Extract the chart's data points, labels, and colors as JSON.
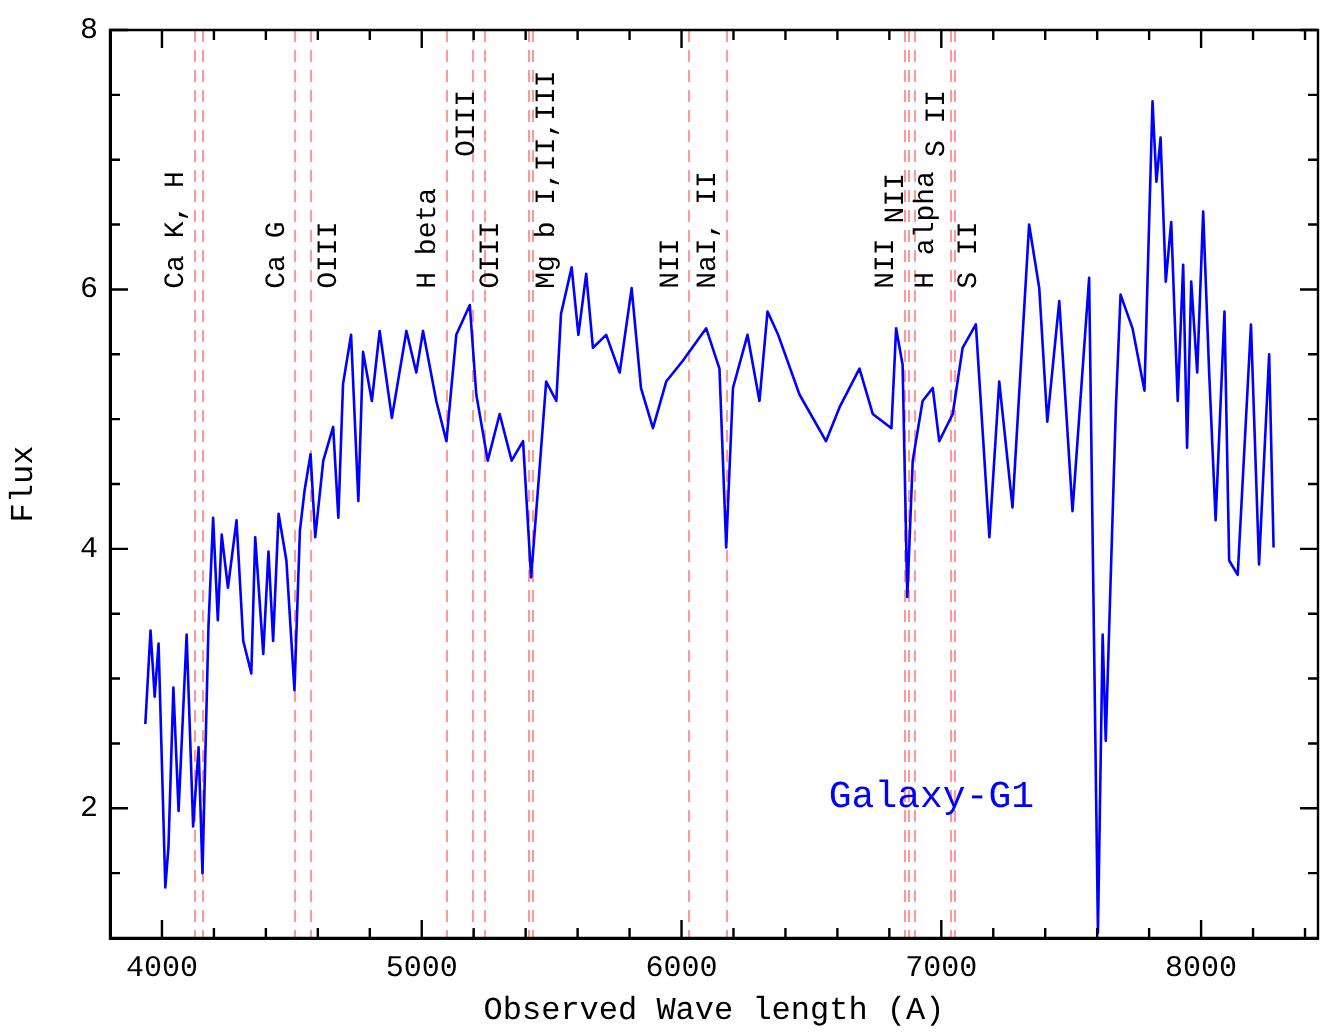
{
  "chart_data": {
    "type": "line",
    "xlabel": "Observed Wave length (A)",
    "ylabel": "Flux",
    "x": [
      3936,
      3956,
      3972,
      3987,
      4013,
      4025,
      4044,
      4064,
      4095,
      4120,
      4141,
      4156,
      4179,
      4197,
      4215,
      4230,
      4254,
      4287,
      4313,
      4344,
      4359,
      4390,
      4410,
      4428,
      4449,
      4479,
      4510,
      4531,
      4549,
      4572,
      4590,
      4621,
      4659,
      4679,
      4697,
      4728,
      4756,
      4774,
      4808,
      4838,
      4885,
      4941,
      4979,
      5005,
      5056,
      5095,
      5133,
      5185,
      5210,
      5254,
      5300,
      5346,
      5390,
      5421,
      5454,
      5479,
      5518,
      5536,
      5577,
      5603,
      5633,
      5659,
      5710,
      5762,
      5808,
      5844,
      5890,
      5941,
      6005,
      6095,
      6146,
      6172,
      6198,
      6254,
      6300,
      6331,
      6372,
      6454,
      6556,
      6608,
      6685,
      6736,
      6808,
      6826,
      6851,
      6869,
      6890,
      6928,
      6967,
      6992,
      7044,
      7082,
      7133,
      7185,
      7223,
      7274,
      7338,
      7377,
      7408,
      7454,
      7505,
      7569,
      7603,
      7621,
      7633,
      7672,
      7690,
      7736,
      7782,
      7813,
      7828,
      7844,
      7864,
      7885,
      7910,
      7931,
      7946,
      7962,
      7985,
      8008,
      8031,
      8056,
      8090,
      8108,
      8141,
      8192,
      8223,
      8262,
      8279
    ],
    "series": [
      {
        "color": "#0000ff",
        "values": [
          2.65,
          3.37,
          2.86,
          3.27,
          1.39,
          1.7,
          2.93,
          1.98,
          3.34,
          1.86,
          2.47,
          1.5,
          3.4,
          4.24,
          3.45,
          4.11,
          3.7,
          4.22,
          3.29,
          3.04,
          4.09,
          3.19,
          3.98,
          3.29,
          4.27,
          3.91,
          2.91,
          4.14,
          4.45,
          4.73,
          4.09,
          4.68,
          4.94,
          4.24,
          5.27,
          5.65,
          4.37,
          5.52,
          5.14,
          5.68,
          5.01,
          5.68,
          5.36,
          5.68,
          5.14,
          4.83,
          5.65,
          5.88,
          5.19,
          4.68,
          5.04,
          4.68,
          4.83,
          3.78,
          4.63,
          5.29,
          5.14,
          5.81,
          6.17,
          5.65,
          6.12,
          5.55,
          5.65,
          5.36,
          6.01,
          5.24,
          4.93,
          5.29,
          5.45,
          5.7,
          5.39,
          4.01,
          5.24,
          5.65,
          5.14,
          5.83,
          5.65,
          5.19,
          4.83,
          5.09,
          5.39,
          5.04,
          4.93,
          5.7,
          5.42,
          3.63,
          4.68,
          5.14,
          5.24,
          4.83,
          5.04,
          5.55,
          5.73,
          4.09,
          5.29,
          4.32,
          6.5,
          6.01,
          4.98,
          5.91,
          4.29,
          6.09,
          1.04,
          3.34,
          2.52,
          5.09,
          5.96,
          5.7,
          5.22,
          7.45,
          6.83,
          7.17,
          6.06,
          6.52,
          5.14,
          6.19,
          4.78,
          6.06,
          5.36,
          6.6,
          5.36,
          4.22,
          5.83,
          3.91,
          3.8,
          5.73,
          3.88,
          5.5,
          4.01
        ]
      }
    ],
    "xlim": [
      3800,
      8450
    ],
    "ylim": [
      1,
      8
    ],
    "xticks": [
      4000,
      {
        "value": 4200,
        "label": null
      },
      {
        "value": 4400,
        "label": null
      },
      {
        "value": 4600,
        "label": null
      },
      {
        "value": 4800,
        "label": null
      },
      5000,
      {
        "value": 5200,
        "label": null
      },
      {
        "value": 5400,
        "label": null
      },
      {
        "value": 5600,
        "label": null
      },
      {
        "value": 5800,
        "label": null
      },
      6000,
      {
        "value": 6200,
        "label": null
      },
      {
        "value": 6400,
        "label": null
      },
      {
        "value": 6600,
        "label": null
      },
      {
        "value": 6800,
        "label": null
      },
      7000,
      {
        "value": 7200,
        "label": null
      },
      {
        "value": 7400,
        "label": null
      },
      {
        "value": 7600,
        "label": null
      },
      {
        "value": 7800,
        "label": null
      },
      8000,
      {
        "value": 8200,
        "label": null
      },
      {
        "value": 8400,
        "label": null
      }
    ],
    "yticks": [
      {
        "value": 1.5,
        "label": null
      },
      2,
      {
        "value": 2.5,
        "label": null
      },
      {
        "value": 3,
        "label": null
      },
      {
        "value": 3.5,
        "label": null
      },
      4,
      {
        "value": 4.5,
        "label": null
      },
      {
        "value": 5,
        "label": null
      },
      {
        "value": 5.5,
        "label": null
      },
      6,
      {
        "value": 6.5,
        "label": null
      },
      {
        "value": 7,
        "label": null
      },
      {
        "value": 7.5,
        "label": null
      },
      8
    ],
    "ref_lines": [
      {
        "axis": "x",
        "value": 4120,
        "label": "Ca K, H",
        "color": "#ff9999",
        "line_style": "dashed"
      },
      {
        "axis": "x",
        "value": 4156,
        "color": "#ff9999",
        "line_style": "dashed"
      },
      {
        "axis": "x",
        "value": 4510,
        "label": "Ca G",
        "color": "#ff9999",
        "line_style": "dashed"
      },
      {
        "axis": "x",
        "value": 4572,
        "label": "OIII",
        "color": "#ff9999",
        "line_style": "dashed"
      },
      {
        "axis": "x",
        "value": 5092,
        "label": "H beta",
        "color": "#ff9999",
        "line_style": "dashed"
      },
      {
        "axis": "x",
        "value": 5195,
        "label": "OIII",
        "color": "#ff9999",
        "line_style": "dashed"
      },
      {
        "axis": "x",
        "value": 5241,
        "label": "OIII",
        "color": "#ff9999",
        "line_style": "dashed"
      },
      {
        "axis": "x",
        "value": 5410,
        "label": "Mg b I,II,III",
        "color": "#ff9999",
        "line_style": "dashed"
      },
      {
        "axis": "x",
        "value": 5428,
        "color": "#ff9999",
        "line_style": "dashed"
      },
      {
        "axis": "x",
        "value": 6026,
        "label": "NII",
        "color": "#ff9999",
        "line_style": "dashed"
      },
      {
        "axis": "x",
        "value": 6170,
        "label": "NaI, II",
        "color": "#ff9999",
        "line_style": "dashed"
      },
      {
        "axis": "x",
        "value": 6856,
        "label": "NII",
        "color": "#ff9999",
        "line_style": "dashed"
      },
      {
        "axis": "x",
        "value": 6870,
        "label": "H alpha",
        "color": "#ff9999",
        "line_style": "dashed"
      },
      {
        "axis": "x",
        "value": 6892,
        "label": "NII",
        "color": "#ff9999",
        "line_style": "dashed"
      },
      {
        "axis": "x",
        "value": 7035,
        "label": "S II",
        "color": "#ff9999",
        "line_style": "dashed"
      },
      {
        "axis": "x",
        "value": 7050,
        "label": "S II",
        "color": "#ff9999",
        "line_style": "dashed"
      }
    ],
    "annotations": [
      "Galaxy-G1"
    ],
    "grid": false,
    "legend": false,
    "marker": "none",
    "line_style": "solid"
  }
}
